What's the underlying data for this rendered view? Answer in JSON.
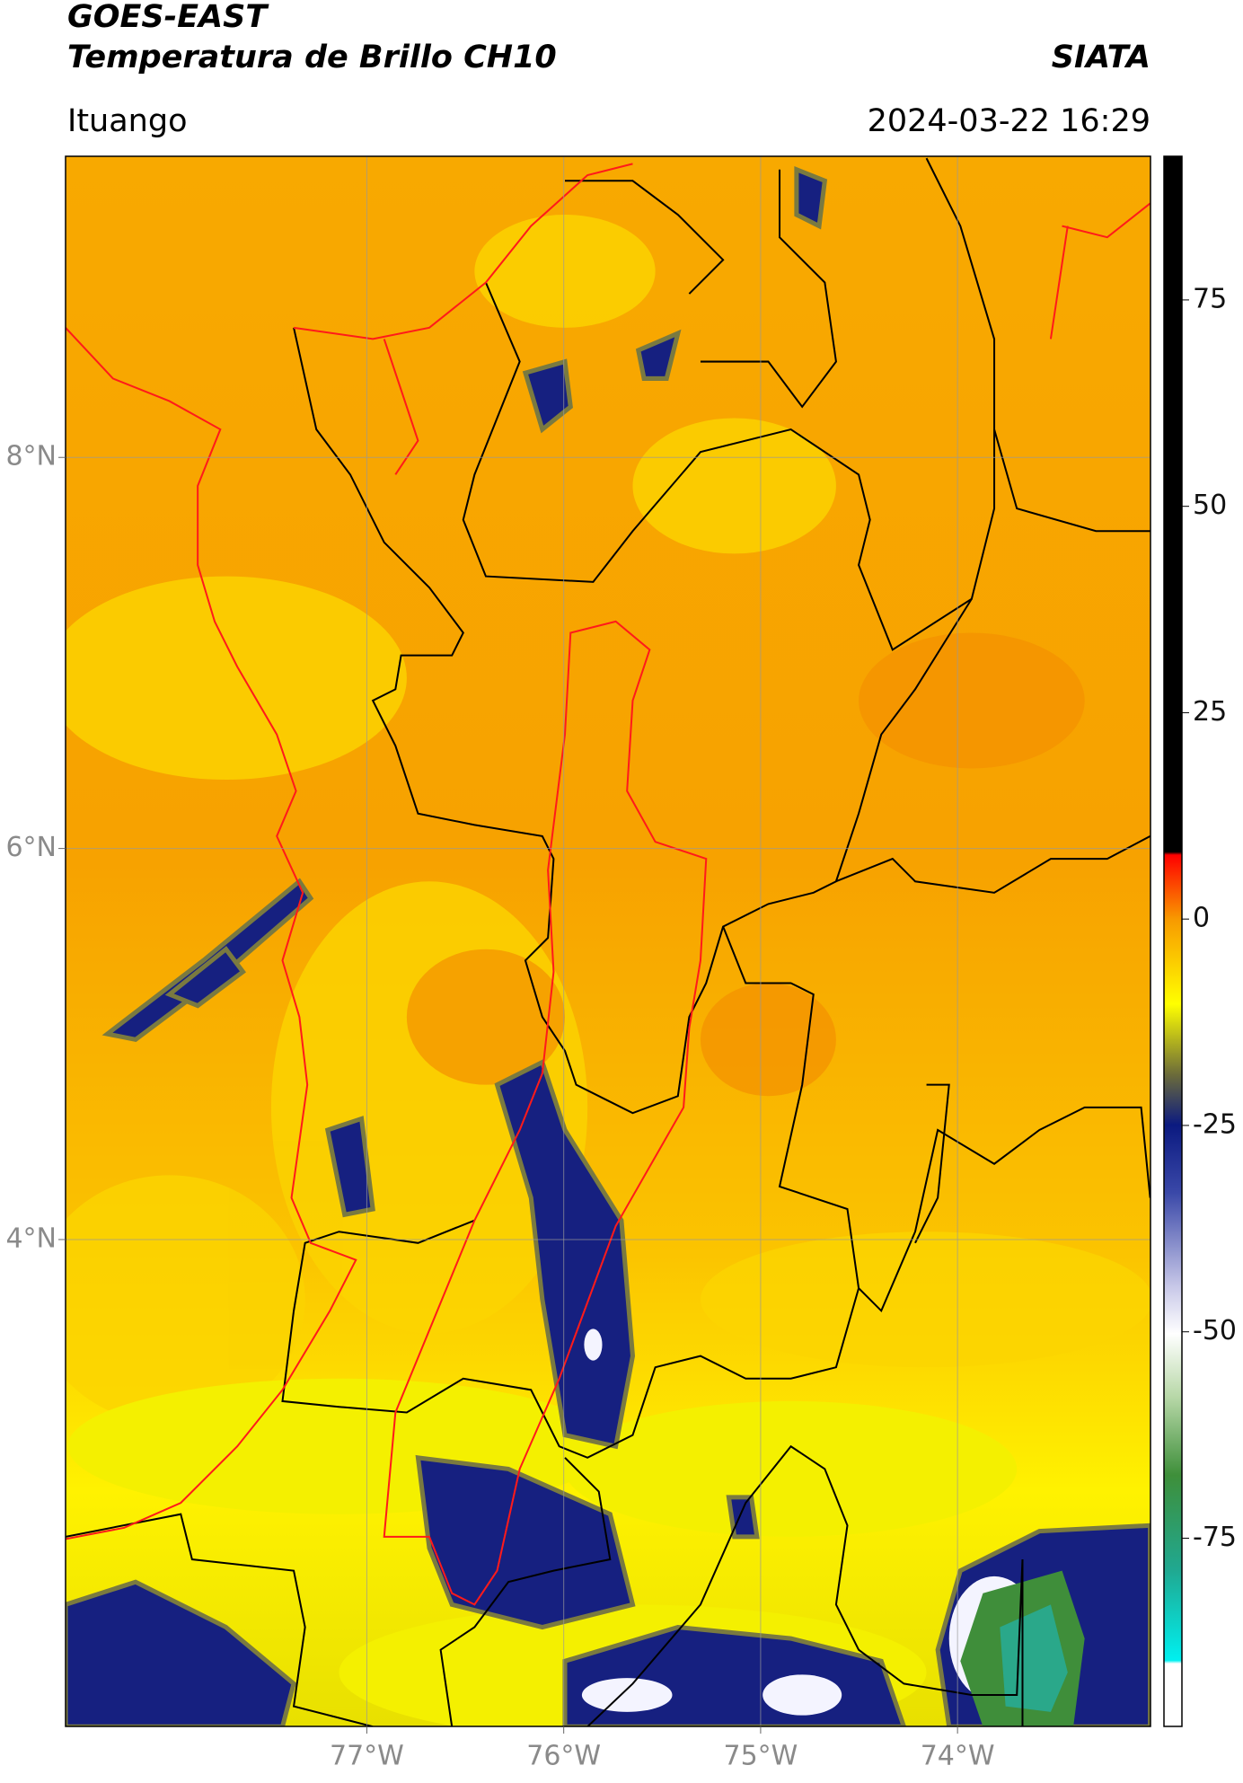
{
  "header": {
    "satellite": "GOES-EAST",
    "product": "Temperatura de Brillo CH10",
    "source": "SIATA",
    "location": "Ituango",
    "datetime": "2024-03-22 16:29"
  },
  "map": {
    "xlim": [
      -78.53,
      -73.02
    ],
    "ylim": [
      1.51,
      9.54
    ],
    "xticks": [
      {
        "value": -77,
        "label": "77°W"
      },
      {
        "value": -76,
        "label": "76°W"
      },
      {
        "value": -75,
        "label": "75°W"
      },
      {
        "value": -74,
        "label": "74°W"
      }
    ],
    "yticks": [
      {
        "value": 8,
        "label": "8°N"
      },
      {
        "value": 6,
        "label": "6°N"
      },
      {
        "value": 4,
        "label": "4°N"
      }
    ],
    "grid": true
  },
  "colorbar": {
    "clim": [
      -97.8,
      92.4
    ],
    "ticks": [
      75,
      50,
      25,
      0,
      -25,
      -50,
      -75
    ]
  }
}
